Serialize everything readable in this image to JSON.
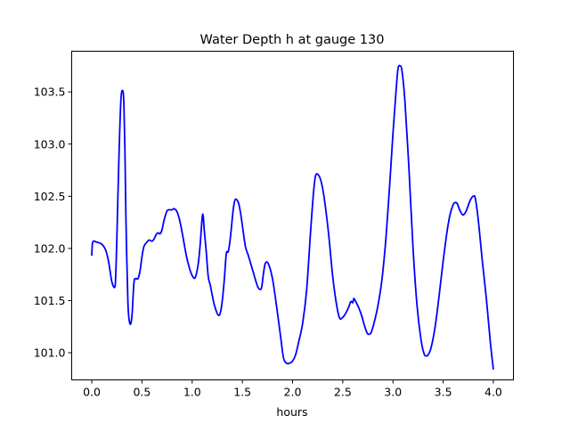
{
  "chart_data": {
    "type": "line",
    "title": "Water Depth h at gauge 130",
    "xlabel": "hours",
    "ylabel": "",
    "xlim": [
      -0.2,
      4.2
    ],
    "ylim": [
      100.74,
      103.89
    ],
    "xticks": [
      0.0,
      0.5,
      1.0,
      1.5,
      2.0,
      2.5,
      3.0,
      3.5,
      4.0
    ],
    "xtick_labels": [
      "0.0",
      "0.5",
      "1.0",
      "1.5",
      "2.0",
      "2.5",
      "3.0",
      "3.5",
      "4.0"
    ],
    "yticks": [
      101.0,
      101.5,
      102.0,
      102.5,
      103.0,
      103.5
    ],
    "ytick_labels": [
      "101.0",
      "101.5",
      "102.0",
      "102.5",
      "103.0",
      "103.5"
    ],
    "grid": false,
    "series": [
      {
        "color": "#0000ff",
        "x": [
          0.0,
          0.01,
          0.05,
          0.1,
          0.14,
          0.17,
          0.2,
          0.23,
          0.24,
          0.25,
          0.27,
          0.29,
          0.31,
          0.32,
          0.33,
          0.34,
          0.36,
          0.38,
          0.4,
          0.42,
          0.44,
          0.46,
          0.48,
          0.5,
          0.52,
          0.55,
          0.57,
          0.6,
          0.62,
          0.64,
          0.66,
          0.68,
          0.7,
          0.72,
          0.75,
          0.78,
          0.8,
          0.82,
          0.85,
          0.88,
          0.91,
          0.94,
          0.97,
          1.0,
          1.03,
          1.06,
          1.08,
          1.1,
          1.11,
          1.12,
          1.14,
          1.16,
          1.18,
          1.2,
          1.22,
          1.24,
          1.26,
          1.28,
          1.3,
          1.32,
          1.34,
          1.36,
          1.38,
          1.41,
          1.43,
          1.46,
          1.48,
          1.5,
          1.53,
          1.56,
          1.6,
          1.63,
          1.66,
          1.69,
          1.71,
          1.73,
          1.76,
          1.8,
          1.84,
          1.88,
          1.91,
          1.94,
          1.97,
          2.0,
          2.03,
          2.06,
          2.1,
          2.14,
          2.18,
          2.21,
          2.23,
          2.26,
          2.29,
          2.32,
          2.36,
          2.4,
          2.44,
          2.47,
          2.5,
          2.53,
          2.56,
          2.58,
          2.6,
          2.61,
          2.63,
          2.66,
          2.69,
          2.71,
          2.73,
          2.75,
          2.78,
          2.81,
          2.85,
          2.89,
          2.93,
          2.97,
          3.0,
          3.03,
          3.05,
          3.07,
          3.09,
          3.12,
          3.16,
          3.2,
          3.24,
          3.28,
          3.31,
          3.33,
          3.35,
          3.38,
          3.42,
          3.46,
          3.5,
          3.54,
          3.57,
          3.6,
          3.62,
          3.64,
          3.66,
          3.68,
          3.7,
          3.73,
          3.76,
          3.78,
          3.8,
          3.82,
          3.85,
          3.89,
          3.93,
          3.97,
          4.0
        ],
        "y": [
          101.93,
          102.06,
          102.06,
          102.04,
          101.98,
          101.86,
          101.68,
          101.63,
          101.78,
          102.1,
          102.85,
          103.42,
          103.51,
          103.38,
          102.95,
          102.3,
          101.48,
          101.28,
          101.35,
          101.67,
          101.71,
          101.71,
          101.78,
          101.92,
          102.02,
          102.06,
          102.08,
          102.07,
          102.09,
          102.13,
          102.15,
          102.14,
          102.18,
          102.27,
          102.36,
          102.37,
          102.37,
          102.38,
          102.35,
          102.25,
          102.1,
          101.94,
          101.82,
          101.74,
          101.72,
          101.85,
          102.04,
          102.3,
          102.31,
          102.18,
          101.97,
          101.73,
          101.65,
          101.55,
          101.46,
          101.4,
          101.36,
          101.38,
          101.5,
          101.7,
          101.95,
          101.97,
          102.1,
          102.38,
          102.47,
          102.44,
          102.35,
          102.22,
          102.02,
          101.93,
          101.8,
          101.7,
          101.62,
          101.62,
          101.76,
          101.86,
          101.85,
          101.71,
          101.45,
          101.16,
          100.95,
          100.9,
          100.9,
          100.92,
          100.98,
          101.1,
          101.28,
          101.6,
          102.17,
          102.55,
          102.7,
          102.7,
          102.62,
          102.45,
          102.13,
          101.73,
          101.45,
          101.33,
          101.34,
          101.38,
          101.44,
          101.49,
          101.48,
          101.52,
          101.49,
          101.43,
          101.35,
          101.28,
          101.22,
          101.18,
          101.19,
          101.28,
          101.45,
          101.7,
          102.1,
          102.65,
          103.1,
          103.5,
          103.72,
          103.75,
          103.7,
          103.4,
          102.75,
          102.0,
          101.45,
          101.12,
          100.99,
          100.97,
          100.98,
          101.05,
          101.25,
          101.55,
          101.88,
          102.17,
          102.33,
          102.42,
          102.44,
          102.43,
          102.38,
          102.34,
          102.32,
          102.36,
          102.44,
          102.48,
          102.5,
          102.48,
          102.27,
          101.88,
          101.52,
          101.1,
          100.84
        ]
      }
    ]
  }
}
